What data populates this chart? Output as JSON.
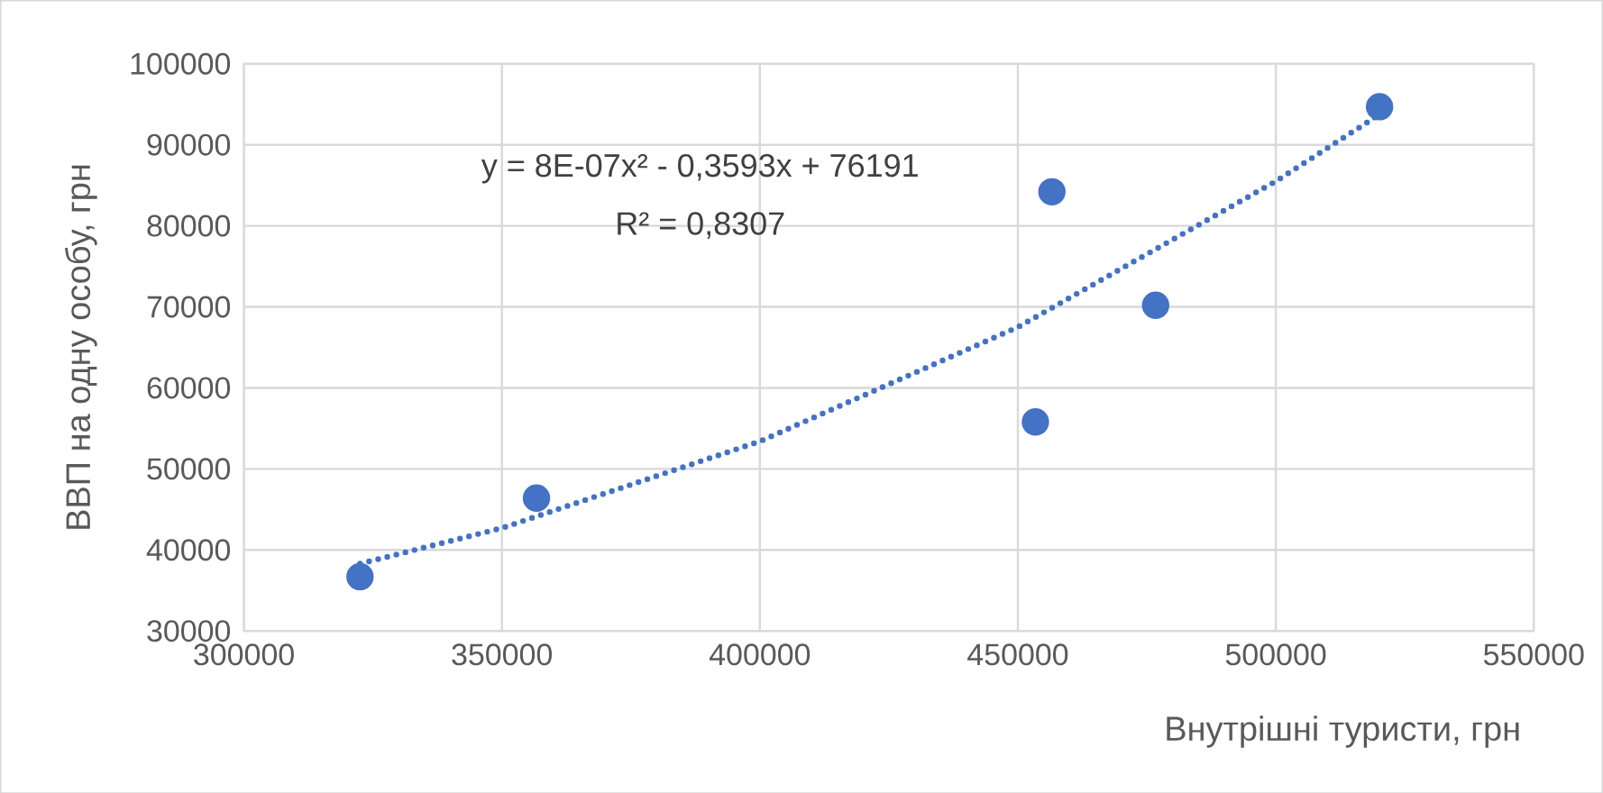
{
  "chart_data": {
    "type": "scatter",
    "xlabel": "Внутрішні туристи, грн",
    "ylabel": "ВВП на одну особу, грн",
    "annotations": [
      "y = 8E-07x² - 0,3593x + 76191",
      "R² = 0,8307"
    ],
    "xlim": [
      300000,
      550000
    ],
    "xticks": [
      300000,
      350000,
      400000,
      450000,
      500000,
      550000
    ],
    "ylim": [
      30000,
      100000
    ],
    "yticks": [
      30000,
      40000,
      50000,
      60000,
      70000,
      80000,
      90000,
      100000
    ],
    "grid": true,
    "marker": "circle",
    "series": [
      {
        "color": "#4472c4",
        "x": [
          322500,
          356700,
          453400,
          456600,
          476700,
          520100
        ],
        "values": [
          36700,
          46400,
          55800,
          84200,
          70200,
          94700
        ]
      },
      {
        "type": "line",
        "color": "#4472c4",
        "marker": "none",
        "line_style": "dotted",
        "x": [
          322500,
          350000,
          400000,
          450000,
          500000,
          520000
        ],
        "values": [
          38300,
          42700,
          53400,
          67500,
          85500,
          93700
        ]
      }
    ]
  }
}
